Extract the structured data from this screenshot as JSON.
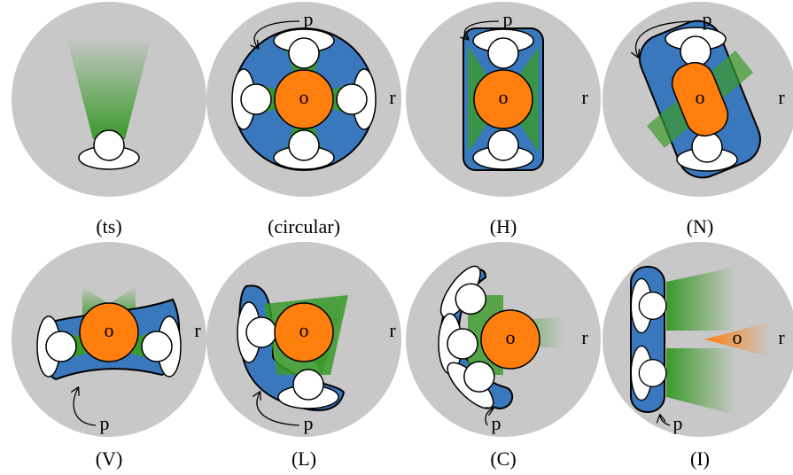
{
  "panels": [
    {
      "caption": "(ts)"
    },
    {
      "caption": "(circular)",
      "p": "p",
      "o": "o",
      "r": "r"
    },
    {
      "caption": "(H)",
      "p": "p",
      "o": "o",
      "r": "r"
    },
    {
      "caption": "(N)",
      "p": "p",
      "o": "o",
      "r": "r"
    },
    {
      "caption": "(V)",
      "p": "p",
      "o": "o",
      "r": "r"
    },
    {
      "caption": "(L)",
      "p": "p",
      "o": "o",
      "r": "r"
    },
    {
      "caption": "(C)",
      "p": "p",
      "o": "o",
      "r": "r"
    },
    {
      "caption": "(I)",
      "p": "p",
      "o": "o",
      "r": "r"
    }
  ]
}
